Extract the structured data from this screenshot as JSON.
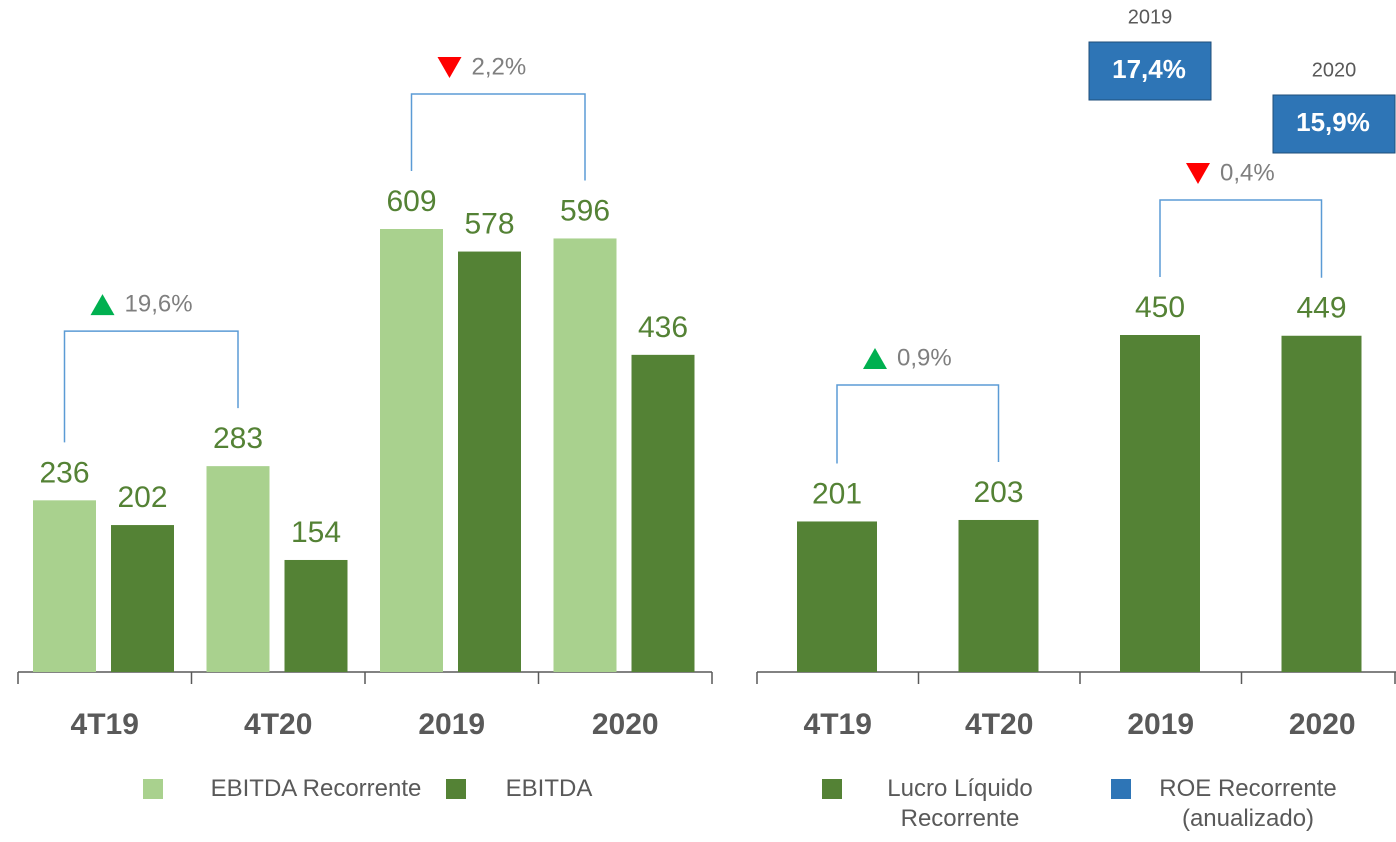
{
  "chart_data": [
    {
      "type": "bar",
      "categories": [
        "4T19",
        "4T20",
        "2019",
        "2020"
      ],
      "series": [
        {
          "name": "EBITDA Recorrente",
          "color": "#a9d18e",
          "values": [
            236,
            283,
            609,
            596
          ]
        },
        {
          "name": "EBITDA",
          "color": "#548235",
          "values": [
            202,
            154,
            578,
            436
          ]
        }
      ],
      "annotations": [
        {
          "text": "19,6%",
          "direction": "up"
        },
        {
          "text": "2,2%",
          "direction": "down"
        }
      ]
    },
    {
      "type": "bar",
      "categories": [
        "4T19",
        "4T20",
        "2019",
        "2020"
      ],
      "series": [
        {
          "name": "Lucro Líquido Recorrente",
          "color": "#548235",
          "values": [
            201,
            203,
            450,
            449
          ]
        }
      ],
      "annotations": [
        {
          "text": "0,9%",
          "direction": "up"
        },
        {
          "text": "0,4%",
          "direction": "down"
        }
      ],
      "roe": {
        "name": "ROE Recorrente (anualizado)",
        "color": "#2e75b6",
        "categories": [
          "2019",
          "2020"
        ],
        "values": [
          17.4,
          15.9
        ],
        "value_labels": [
          "17,4%",
          "15,9%"
        ]
      }
    }
  ]
}
